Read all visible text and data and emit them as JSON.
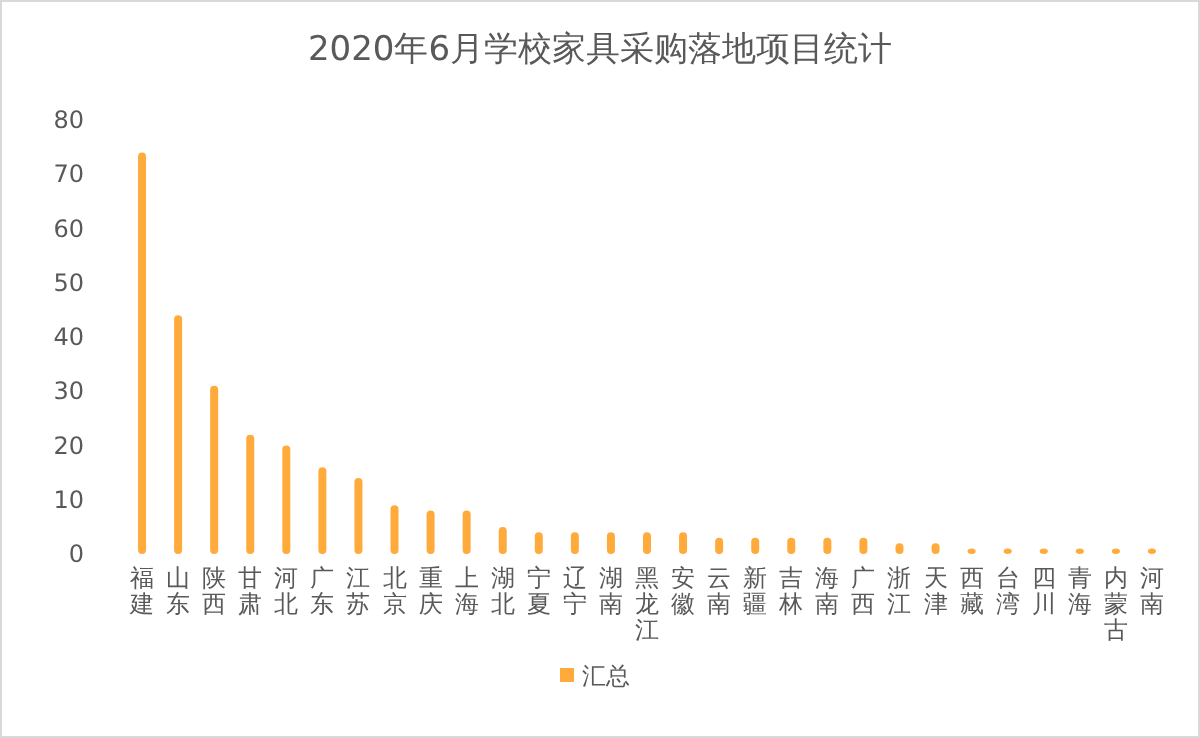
{
  "chart_data": {
    "type": "bar",
    "title": "2020年6月学校家具采购落地项目统计",
    "categories": [
      "福建",
      "山东",
      "陕西",
      "甘肃",
      "河北",
      "广东",
      "江苏",
      "北京",
      "重庆",
      "上海",
      "湖北",
      "宁夏",
      "辽宁",
      "湖南",
      "黑龙江",
      "安徽",
      "云南",
      "新疆",
      "吉林",
      "海南",
      "广西",
      "浙江",
      "天津",
      "西藏",
      "台湾",
      "四川",
      "青海",
      "内蒙古",
      "河南"
    ],
    "series": [
      {
        "name": "汇总",
        "color": "#ffab3c",
        "values": [
          74,
          44,
          31,
          22,
          20,
          16,
          14,
          9,
          8,
          8,
          5,
          4,
          4,
          4,
          4,
          4,
          3,
          3,
          3,
          3,
          3,
          2,
          2,
          1,
          1,
          1,
          1,
          1,
          1
        ]
      }
    ],
    "ylim": [
      0,
      80
    ],
    "yticks": [
      0,
      10,
      20,
      30,
      40,
      50,
      60,
      70,
      80
    ],
    "grid": false,
    "legend": "bottom"
  }
}
